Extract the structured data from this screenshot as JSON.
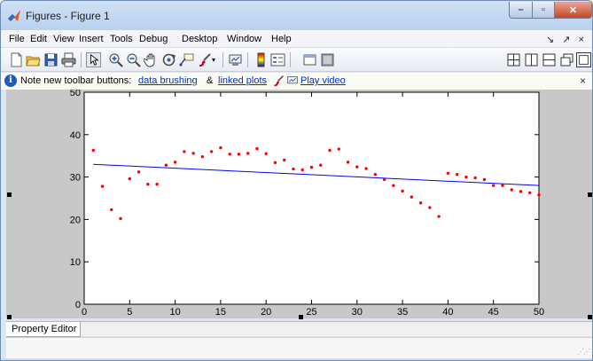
{
  "window": {
    "title": "Figures - Figure 1",
    "min_glyph": "–",
    "max_glyph": "▫",
    "close_glyph": "✕"
  },
  "menu": {
    "items": [
      "File",
      "Edit",
      "View",
      "Insert",
      "Tools",
      "Debug",
      "Desktop",
      "Window",
      "Help"
    ],
    "right_controls": "↘ ↗ ×"
  },
  "toolbar": {
    "icons": [
      "new-figure-icon",
      "open-file-icon",
      "save-icon",
      "print-icon",
      "edit-plot-arrow-icon",
      "zoom-in-icon",
      "zoom-out-icon",
      "pan-hand-icon",
      "rotate-3d-icon",
      "data-cursor-icon",
      "brush-icon",
      "link-plot-icon",
      "colorbar-icon",
      "legend-icon",
      "hide-plot-tools-icon",
      "show-plot-tools-icon",
      "tile-grid-icon",
      "split-vertical-icon",
      "split-horizontal-icon",
      "float-icon",
      "dock-icon"
    ]
  },
  "infobar": {
    "prefix": "Note new toolbar buttons:",
    "link1": "data brushing",
    "amp": "&",
    "link2": "linked plots",
    "link3": "Play video",
    "close": "×"
  },
  "colors": {
    "scatter": "#ff0000",
    "fit_line": "#0000ff",
    "axes_bg": "#ffffff",
    "figure_bg": "#c8c8c8"
  },
  "chart_data": {
    "type": "scatter",
    "xlim": [
      0,
      50
    ],
    "ylim": [
      0,
      50
    ],
    "xticks": [
      0,
      5,
      10,
      15,
      20,
      25,
      30,
      35,
      40,
      45,
      50
    ],
    "yticks": [
      0,
      10,
      20,
      30,
      40,
      50
    ],
    "grid": false,
    "series": [
      {
        "type": "scatter",
        "x": [
          1,
          2,
          3,
          4,
          5,
          6,
          7,
          8,
          9,
          10,
          11,
          12,
          13,
          14,
          15,
          16,
          17,
          18,
          19,
          20,
          21,
          22,
          23,
          24,
          25,
          26,
          27,
          28,
          29,
          30,
          31,
          32,
          33,
          34,
          35,
          36,
          37,
          38,
          39,
          40,
          41,
          42,
          43,
          44,
          45,
          46,
          47,
          48,
          49,
          50
        ],
        "y": [
          36.3,
          27.8,
          22.3,
          20.2,
          29.6,
          31.2,
          28.3,
          28.3,
          32.8,
          33.5,
          36.0,
          35.6,
          34.8,
          36.0,
          36.9,
          35.4,
          35.4,
          35.6,
          36.7,
          35.5,
          33.4,
          34.0,
          31.9,
          31.7,
          32.3,
          32.8,
          36.3,
          36.6,
          33.5,
          32.4,
          32.0,
          30.6,
          29.4,
          28.0,
          26.7,
          25.3,
          23.9,
          22.8,
          20.7,
          30.9,
          30.6,
          30.0,
          29.8,
          29.4,
          28.0,
          28.0,
          27.0,
          26.6,
          26.3,
          25.8
        ]
      },
      {
        "type": "line",
        "x": [
          1,
          50
        ],
        "y": [
          33.0,
          28.0
        ]
      }
    ]
  },
  "property_editor": {
    "tab_label": "Property Editor",
    "grip": "⋰⋰"
  }
}
